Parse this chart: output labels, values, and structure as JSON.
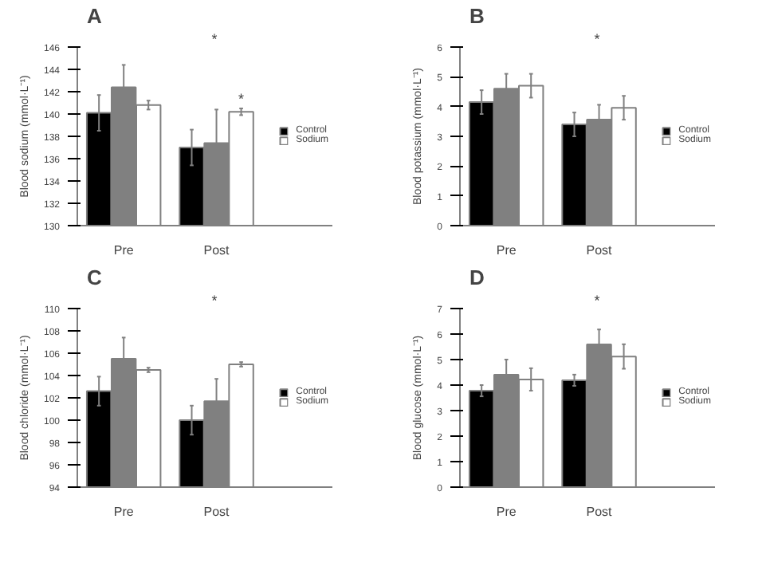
{
  "chart_data": [
    {
      "type": "bar",
      "title": "A",
      "ylabel": "Blood sodium (mmol·L⁻¹)",
      "categories": [
        "Pre",
        "Post"
      ],
      "ylim": [
        130,
        146
      ],
      "yticks": [
        130,
        132,
        134,
        136,
        138,
        140,
        142,
        144,
        146
      ],
      "grid": false,
      "legend": "right",
      "annotations": [
        "*",
        {
          "text": "*",
          "x": "Post",
          "y": 140.5
        }
      ],
      "series": [
        {
          "name": "Control",
          "color": "#000000",
          "values": [
            140.1,
            137.0
          ],
          "errors": [
            1.6,
            1.6
          ]
        },
        {
          "name": null,
          "color": "#808080",
          "values": [
            142.4,
            137.4
          ],
          "errors": [
            2.0,
            3.0
          ]
        },
        {
          "name": "Sodium",
          "color": "#ffffff",
          "values": [
            140.8,
            140.2
          ],
          "errors": [
            0.4,
            0.3
          ]
        }
      ]
    },
    {
      "type": "bar",
      "title": "B",
      "ylabel": "Blood potassium (mmol·L⁻¹)",
      "categories": [
        "Pre",
        "Post"
      ],
      "ylim": [
        0,
        6
      ],
      "yticks": [
        0,
        1,
        2,
        3,
        4,
        5,
        6
      ],
      "grid": false,
      "legend": "right",
      "annotations": [
        "*"
      ],
      "series": [
        {
          "name": "Control",
          "color": "#000000",
          "values": [
            4.15,
            3.4
          ],
          "errors": [
            0.4,
            0.4
          ]
        },
        {
          "name": null,
          "color": "#808080",
          "values": [
            4.6,
            3.56
          ],
          "errors": [
            0.5,
            0.5
          ]
        },
        {
          "name": "Sodium",
          "color": "#ffffff",
          "values": [
            4.7,
            3.96
          ],
          "errors": [
            0.4,
            0.4
          ]
        }
      ]
    },
    {
      "type": "bar",
      "title": "C",
      "ylabel": "Blood chloride (mmol·L⁻¹)",
      "categories": [
        "Pre",
        "Post"
      ],
      "ylim": [
        94,
        110
      ],
      "yticks": [
        94,
        96,
        98,
        100,
        102,
        104,
        106,
        108,
        110
      ],
      "grid": false,
      "legend": "right",
      "annotations": [
        "*"
      ],
      "series": [
        {
          "name": "Control",
          "color": "#000000",
          "values": [
            102.6,
            100.0
          ],
          "errors": [
            1.3,
            1.3
          ]
        },
        {
          "name": null,
          "color": "#808080",
          "values": [
            105.5,
            101.7
          ],
          "errors": [
            1.9,
            2.0
          ]
        },
        {
          "name": "Sodium",
          "color": "#ffffff",
          "values": [
            104.5,
            105.0
          ],
          "errors": [
            0.2,
            0.2
          ]
        }
      ]
    },
    {
      "type": "bar",
      "title": "D",
      "ylabel": "Blood glucose (mmol·L⁻¹)",
      "categories": [
        "Pre",
        "Post"
      ],
      "ylim": [
        0,
        7
      ],
      "yticks": [
        0,
        1,
        2,
        3,
        4,
        5,
        6,
        7
      ],
      "grid": false,
      "legend": "right",
      "annotations": [
        "*"
      ],
      "series": [
        {
          "name": "Control",
          "color": "#000000",
          "values": [
            3.78,
            4.19
          ],
          "errors": [
            0.22,
            0.22
          ]
        },
        {
          "name": null,
          "color": "#808080",
          "values": [
            4.41,
            5.59
          ],
          "errors": [
            0.59,
            0.59
          ]
        },
        {
          "name": "Sodium",
          "color": "#ffffff",
          "values": [
            4.22,
            5.12
          ],
          "errors": [
            0.44,
            0.48
          ]
        }
      ]
    }
  ]
}
